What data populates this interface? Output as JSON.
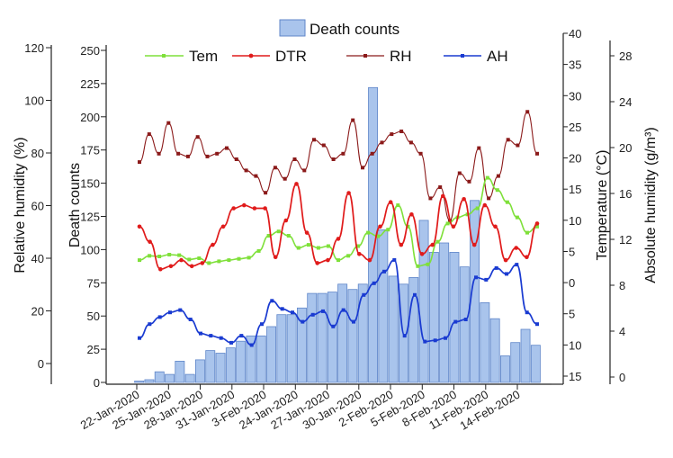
{
  "chart_data": {
    "type": "bar",
    "x_tick_labels": [
      "22-Jan-2020",
      "25-Jan-2020",
      "28-Jan-2020",
      "31-Jan-2020",
      "3-Feb-2020",
      "24-Jan-2020",
      "27-Jan-2020",
      "30-Jan-2020",
      "2-Feb-2020",
      "5-Feb-2020",
      "8-Feb-2020",
      "11-Feb-2020",
      "14-Feb-2020"
    ],
    "axes": {
      "rh": {
        "label": "Relative humidity (%)",
        "ticks": [
          "120",
          "100",
          "80",
          "60",
          "40",
          "20",
          "0"
        ]
      },
      "deaths": {
        "label": "Death counts",
        "ticks": [
          "250",
          "225",
          "200",
          "175",
          "150",
          "125",
          "100",
          "75",
          "50",
          "25",
          "0"
        ],
        "ylim": [
          0,
          250
        ]
      },
      "temperature": {
        "label": "Temperature (°C)",
        "ticks": [
          "40",
          "35",
          "30",
          "25",
          "20",
          "15",
          "10",
          "5",
          "0",
          "5",
          "10",
          "15"
        ]
      },
      "ah": {
        "label": "Absolute humidity (g/m³)",
        "ticks": [
          "28",
          "24",
          "20",
          "16",
          "12",
          "8",
          "4",
          "0"
        ]
      }
    },
    "legend": {
      "death_counts": "Death counts",
      "tem": "Tem",
      "dtr": "DTR",
      "rh": "RH",
      "ah": "AH"
    },
    "colors": {
      "bar_fill": "#a9c4ec",
      "bar_stroke": "#5f86c9",
      "tem": "#7fe03a",
      "dtr": "#e01b1b",
      "rh": "#8b1a1a",
      "ah": "#1a3bd1"
    },
    "series": [
      {
        "name": "Death counts",
        "axis": "deaths",
        "values": [
          1,
          2,
          8,
          6,
          16,
          6,
          17,
          24,
          22,
          26,
          31,
          35,
          35,
          42,
          51,
          51,
          56,
          67,
          67,
          68,
          74,
          70,
          74,
          222,
          115,
          80,
          74,
          79,
          122,
          98,
          105,
          98,
          87,
          137,
          60,
          48,
          20,
          30,
          40,
          28
        ]
      },
      {
        "name": "Tem",
        "axis": "temperature",
        "values": [
          2.5,
          3.2,
          3.1,
          3.4,
          3.3,
          2.6,
          2.8,
          2.0,
          2.3,
          2.5,
          2.7,
          2.9,
          4.0,
          6.5,
          7.2,
          6.5,
          4.5,
          5.0,
          4.5,
          4.8,
          2.5,
          3.2,
          4.8,
          7.0,
          6.4,
          7.5,
          11.5,
          8.0,
          1.5,
          1.8,
          5.5,
          8.5,
          9.5,
          10.0,
          11.0,
          16.0,
          14.0,
          12.0,
          9.5,
          7.0,
          8.0
        ]
      },
      {
        "name": "DTR",
        "axis": "temperature",
        "values": [
          8.0,
          5.5,
          1.0,
          1.5,
          2.5,
          1.5,
          2.0,
          5.0,
          8.0,
          11.0,
          11.5,
          11.0,
          11.0,
          3.0,
          9.0,
          15.0,
          7.0,
          2.0,
          2.5,
          6.0,
          13.5,
          3.5,
          2.5,
          8.0,
          12.0,
          5.0,
          10.0,
          3.5,
          5.0,
          13.0,
          8.0,
          12.5,
          5.0,
          11.5,
          8.0,
          2.5,
          4.5,
          3.0,
          8.5
        ]
      },
      {
        "name": "RH",
        "axis": "rh",
        "values": [
          79,
          89,
          82,
          93,
          82,
          81,
          88,
          81,
          82,
          84,
          80,
          76,
          74,
          68,
          77,
          73,
          80,
          76,
          87,
          85,
          80,
          82,
          94,
          77,
          82,
          86,
          89,
          90,
          86,
          82,
          66,
          70,
          58,
          75,
          72,
          84,
          66,
          74,
          87,
          85,
          97,
          82
        ]
      },
      {
        "name": "AH",
        "axis": "ah",
        "values": [
          3.8,
          5.0,
          5.6,
          6.0,
          6.2,
          5.4,
          4.2,
          4.0,
          3.8,
          3.4,
          4.0,
          3.2,
          5.0,
          7.0,
          6.3,
          6.0,
          5.2,
          5.8,
          6.1,
          4.8,
          6.2,
          5.2,
          7.5,
          8.5,
          9.5,
          10.5,
          4.0,
          7.5,
          3.5,
          3.6,
          3.8,
          5.2,
          5.4,
          9.0,
          8.8,
          9.8,
          9.3,
          10.1,
          6.0,
          5.0
        ]
      }
    ]
  }
}
